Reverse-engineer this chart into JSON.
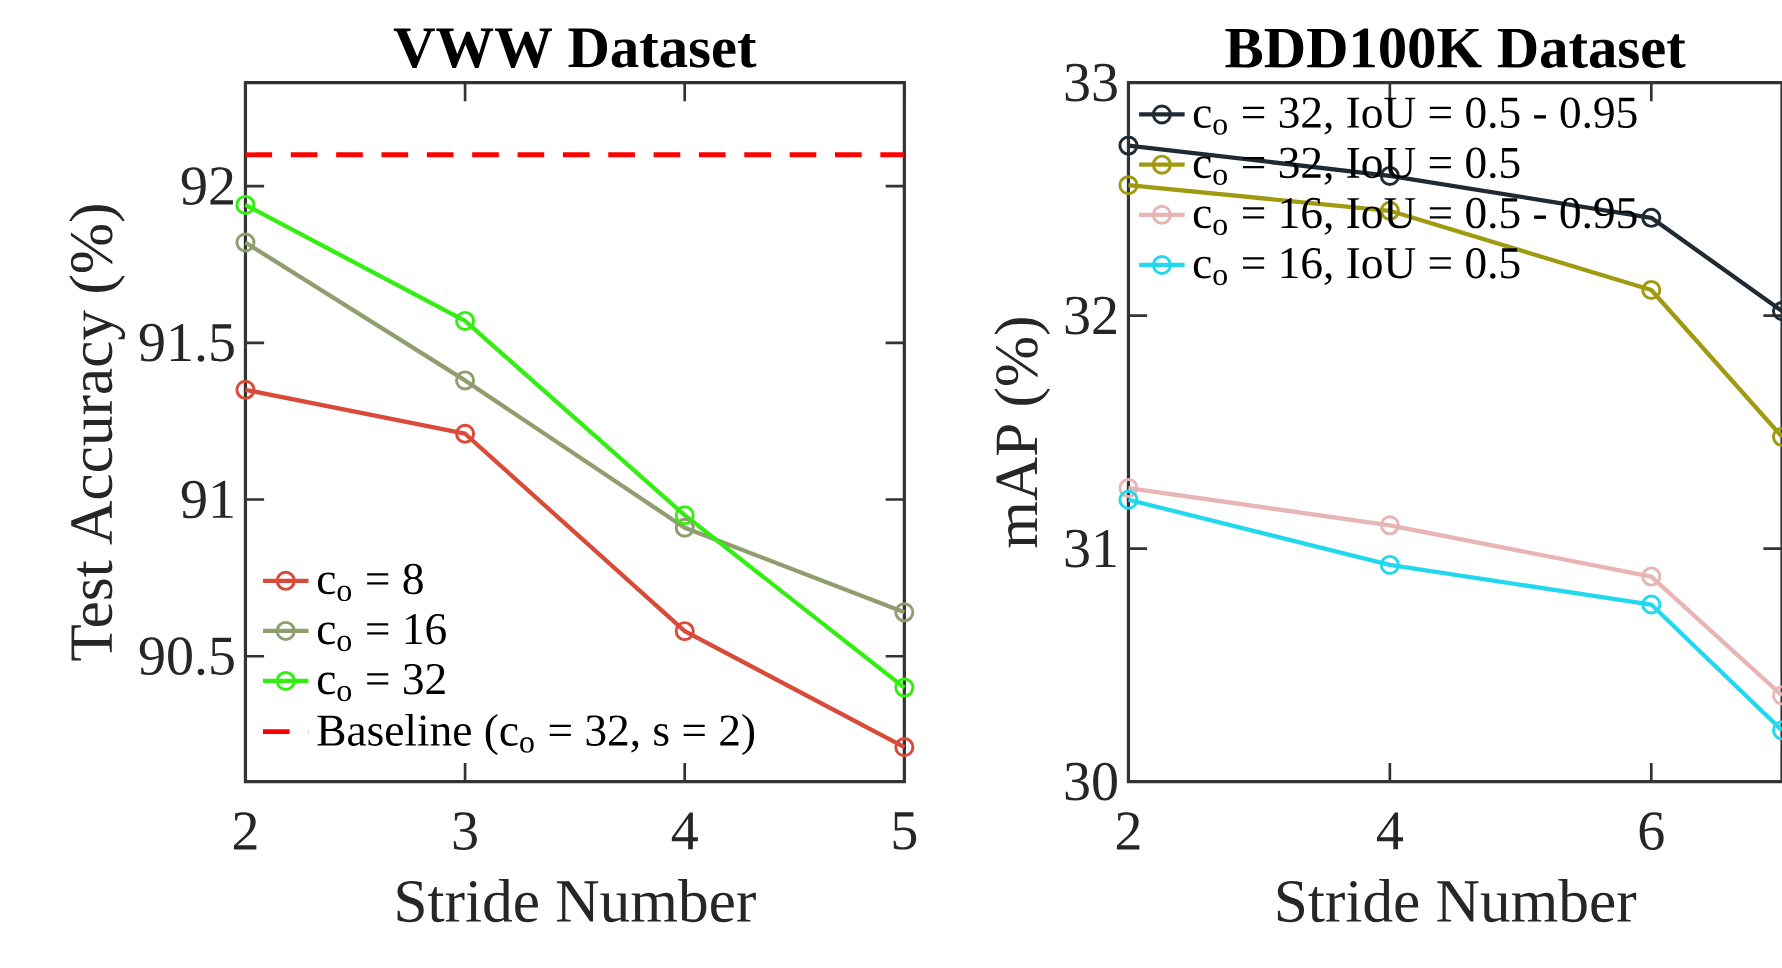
{
  "chart_data": [
    {
      "type": "line",
      "title": "VWW Dataset",
      "xlabel": "Stride Number",
      "ylabel": "Test Accuracy (%)",
      "x": [
        2,
        3,
        4,
        5
      ],
      "xlim": [
        2,
        5
      ],
      "xticks": [
        2,
        3,
        4,
        5
      ],
      "ylim": [
        90.1,
        92.33
      ],
      "yticks": [
        90.5,
        91,
        91.5,
        92
      ],
      "marker": "circle",
      "line_style": "solid",
      "legend": "bottom left",
      "series": [
        {
          "name": "c$_{o}$ = 8",
          "color": "#d94a38",
          "values": [
            91.35,
            91.21,
            90.58,
            90.21
          ]
        },
        {
          "name": "c$_{o}$ = 16",
          "color": "#8f9e6e",
          "values": [
            91.82,
            91.38,
            90.91,
            90.64
          ]
        },
        {
          "name": "c$_{o}$ = 32",
          "color": "#33ee11",
          "values": [
            91.94,
            91.57,
            90.95,
            90.4
          ]
        },
        {
          "name": "Baseline (c$_{o}$ = 32, s = 2)",
          "color": "#ff0000",
          "values": [
            92.1,
            92.1,
            92.1,
            92.1
          ],
          "line_style": "dashed",
          "marker": "none"
        }
      ]
    },
    {
      "type": "line",
      "title": "BDD100K Dataset",
      "xlabel": "Stride Number",
      "ylabel": "mAP (%)",
      "x": [
        2,
        4,
        6,
        7
      ],
      "xlim": [
        2,
        7
      ],
      "xticks": [
        2,
        4,
        6
      ],
      "ylim": [
        30,
        33
      ],
      "yticks": [
        30,
        31,
        32,
        33
      ],
      "marker": "circle",
      "line_style": "solid",
      "legend": "top left",
      "series": [
        {
          "name": "c$_{o}$ = 32, IoU = 0.5 - 0.95",
          "color": "#1f2a33",
          "values": [
            32.73,
            32.6,
            32.42,
            32.02
          ]
        },
        {
          "name": "c$_{o}$ = 32, IoU = 0.5",
          "color": "#a09a10",
          "values": [
            32.56,
            32.45,
            32.11,
            31.48
          ]
        },
        {
          "name": "c$_{o}$ = 16, IoU = 0.5 - 0.95",
          "color": "#e8b4b4",
          "values": [
            31.26,
            31.1,
            30.88,
            30.37
          ]
        },
        {
          "name": "c$_{o}$ = 16, IoU = 0.5",
          "color": "#22d8ee",
          "values": [
            31.21,
            30.93,
            30.76,
            30.22
          ]
        }
      ]
    }
  ]
}
